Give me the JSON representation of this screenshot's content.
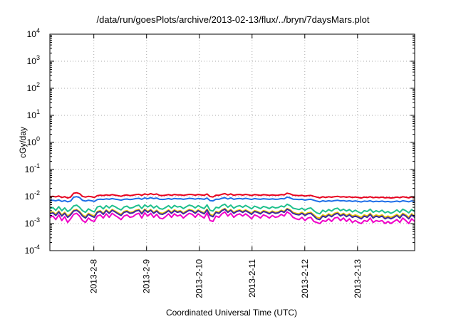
{
  "chart_data": {
    "type": "line",
    "title": "/data/run/goesPlots/archive/2013-02-13/flux/../bryn/7daysMars.plot",
    "xlabel": "Coordinated Universal Time (UTC)",
    "ylabel": "cGy/day",
    "yscale": "log",
    "ylim": [
      0.0001,
      10000
    ],
    "xlim": [
      "2013-02-07T04:00",
      "2013-02-14T02:00"
    ],
    "grid": true,
    "legend": "none",
    "y_ticks": [
      {
        "base": "10",
        "exp": "-4"
      },
      {
        "base": "10",
        "exp": "-3"
      },
      {
        "base": "10",
        "exp": "-2"
      },
      {
        "base": "10",
        "exp": "-1"
      },
      {
        "base": "10",
        "exp": "0"
      },
      {
        "base": "10",
        "exp": "1"
      },
      {
        "base": "10",
        "exp": "2"
      },
      {
        "base": "10",
        "exp": "3"
      },
      {
        "base": "10",
        "exp": "4"
      }
    ],
    "x_ticks": [
      {
        "label": "2013-2-8",
        "date": "2013-02-08T00:00"
      },
      {
        "label": "2013-2-9",
        "date": "2013-02-09T00:00"
      },
      {
        "label": "2013-2-10",
        "date": "2013-02-10T00:00"
      },
      {
        "label": "2013-2-11",
        "date": "2013-02-11T00:00"
      },
      {
        "label": "2013-2-12",
        "date": "2013-02-12T00:00"
      },
      {
        "label": "2013-2-13",
        "date": "2013-02-13T00:00"
      }
    ],
    "series": [
      {
        "color": "#e8001e",
        "start": "2013-02-07T04:00",
        "end": "2013-02-14T02:00",
        "values": [
          0.0098,
          0.0102,
          0.0097,
          0.0105,
          0.0092,
          0.0099,
          0.0088,
          0.0095,
          0.0132,
          0.0138,
          0.0128,
          0.0101,
          0.0095,
          0.0102,
          0.0098,
          0.0092,
          0.0108,
          0.0112,
          0.0109,
          0.0115,
          0.011,
          0.0118,
          0.0112,
          0.0108,
          0.0102,
          0.0111,
          0.0114,
          0.0108,
          0.0112,
          0.0118,
          0.0121,
          0.0111,
          0.0125,
          0.0116,
          0.0128,
          0.0118,
          0.0124,
          0.011,
          0.0109,
          0.0112,
          0.0118,
          0.011,
          0.0119,
          0.0115,
          0.0116,
          0.011,
          0.0115,
          0.012,
          0.0118,
          0.0112,
          0.0119,
          0.0115,
          0.0111,
          0.0124,
          0.01,
          0.0096,
          0.0112,
          0.0111,
          0.0121,
          0.0128,
          0.0114,
          0.0125,
          0.0111,
          0.0117,
          0.0119,
          0.0113,
          0.012,
          0.0115,
          0.0109,
          0.0118,
          0.0114,
          0.011,
          0.0117,
          0.0114,
          0.011,
          0.0115,
          0.0111,
          0.0112,
          0.0118,
          0.0115,
          0.0133,
          0.0125,
          0.0112,
          0.011,
          0.0108,
          0.0111,
          0.0104,
          0.0108,
          0.011,
          0.0102,
          0.0095,
          0.0089,
          0.0098,
          0.0092,
          0.0098,
          0.0094,
          0.0099,
          0.0102,
          0.0096,
          0.0099,
          0.0094,
          0.0098,
          0.0092,
          0.0096,
          0.0092,
          0.0088,
          0.0095,
          0.0092,
          0.0098,
          0.009,
          0.0094,
          0.0091,
          0.0095,
          0.0089,
          0.0092,
          0.0088,
          0.0091,
          0.0095,
          0.009,
          0.0098,
          0.0094,
          0.0089,
          0.0097,
          0.0092
        ]
      },
      {
        "color": "#1e6ee8",
        "start": "2013-02-07T04:00",
        "end": "2013-02-14T02:00",
        "values": [
          0.0071,
          0.0073,
          0.0069,
          0.0075,
          0.0066,
          0.0071,
          0.0064,
          0.0068,
          0.0094,
          0.0099,
          0.0092,
          0.0072,
          0.0068,
          0.0073,
          0.007,
          0.0066,
          0.0077,
          0.008,
          0.0078,
          0.0082,
          0.0079,
          0.0084,
          0.008,
          0.0077,
          0.0073,
          0.0079,
          0.0081,
          0.0077,
          0.008,
          0.0084,
          0.0086,
          0.0079,
          0.0089,
          0.0083,
          0.0091,
          0.0084,
          0.0088,
          0.0079,
          0.0078,
          0.008,
          0.0084,
          0.0079,
          0.0085,
          0.0082,
          0.0083,
          0.0079,
          0.0082,
          0.0086,
          0.0084,
          0.008,
          0.0085,
          0.0082,
          0.0079,
          0.0088,
          0.0071,
          0.0069,
          0.008,
          0.0079,
          0.0086,
          0.0091,
          0.0081,
          0.0089,
          0.0079,
          0.0083,
          0.0085,
          0.0081,
          0.0086,
          0.0082,
          0.0078,
          0.0084,
          0.0081,
          0.0079,
          0.0083,
          0.0081,
          0.0079,
          0.0082,
          0.0079,
          0.008,
          0.0084,
          0.0082,
          0.0095,
          0.0089,
          0.008,
          0.0079,
          0.0077,
          0.0079,
          0.0074,
          0.0077,
          0.0079,
          0.0073,
          0.0068,
          0.0064,
          0.007,
          0.0066,
          0.007,
          0.0067,
          0.0071,
          0.0073,
          0.0069,
          0.0071,
          0.0067,
          0.007,
          0.0066,
          0.0069,
          0.0066,
          0.0063,
          0.0068,
          0.0066,
          0.007,
          0.0064,
          0.0067,
          0.0065,
          0.0068,
          0.0064,
          0.0066,
          0.0063,
          0.0065,
          0.0068,
          0.0064,
          0.007,
          0.0067,
          0.0064,
          0.0069,
          0.0066
        ]
      },
      {
        "color": "#1ec08c",
        "start": "2013-02-07T04:00",
        "end": "2013-02-14T02:00",
        "values": [
          0.0036,
          0.0039,
          0.0031,
          0.0042,
          0.003,
          0.0038,
          0.0028,
          0.0033,
          0.0045,
          0.0048,
          0.004,
          0.003,
          0.0026,
          0.0035,
          0.003,
          0.0027,
          0.0041,
          0.0044,
          0.0035,
          0.0046,
          0.0038,
          0.0047,
          0.0042,
          0.0036,
          0.0032,
          0.0041,
          0.0044,
          0.0037,
          0.0039,
          0.0045,
          0.0048,
          0.0036,
          0.0049,
          0.0041,
          0.0048,
          0.0038,
          0.0045,
          0.0036,
          0.0034,
          0.0039,
          0.0046,
          0.0037,
          0.0047,
          0.0041,
          0.0043,
          0.0036,
          0.0042,
          0.0048,
          0.0045,
          0.0038,
          0.0046,
          0.004,
          0.0036,
          0.0049,
          0.0031,
          0.0029,
          0.004,
          0.0038,
          0.0047,
          0.0052,
          0.004,
          0.0048,
          0.0037,
          0.0043,
          0.0046,
          0.004,
          0.0047,
          0.0041,
          0.0035,
          0.0044,
          0.004,
          0.0036,
          0.0043,
          0.004,
          0.0036,
          0.0042,
          0.0038,
          0.0039,
          0.0045,
          0.0041,
          0.0052,
          0.0046,
          0.0037,
          0.0035,
          0.0033,
          0.0037,
          0.0031,
          0.0036,
          0.0038,
          0.003,
          0.0025,
          0.0023,
          0.0031,
          0.0027,
          0.0033,
          0.0029,
          0.0035,
          0.0037,
          0.003,
          0.0034,
          0.0029,
          0.0033,
          0.0027,
          0.0031,
          0.0027,
          0.0024,
          0.003,
          0.0028,
          0.0034,
          0.0026,
          0.003,
          0.0027,
          0.0031,
          0.0025,
          0.0028,
          0.0024,
          0.0027,
          0.0032,
          0.0026,
          0.0034,
          0.003,
          0.0025,
          0.0033,
          0.0028
        ]
      },
      {
        "color": "#e8c800",
        "start": "2013-02-07T04:00",
        "end": "2013-02-14T02:00",
        "values": [
          0.0025,
          0.0027,
          0.0022,
          0.0029,
          0.0021,
          0.0026,
          0.0019,
          0.0023,
          0.0031,
          0.0033,
          0.0028,
          0.0021,
          0.0018,
          0.0024,
          0.0021,
          0.0019,
          0.0028,
          0.003,
          0.0024,
          0.0032,
          0.0026,
          0.0033,
          0.0029,
          0.0025,
          0.0022,
          0.0028,
          0.003,
          0.0026,
          0.0027,
          0.0031,
          0.0033,
          0.0025,
          0.0034,
          0.0028,
          0.0033,
          0.0026,
          0.0031,
          0.0025,
          0.0024,
          0.0027,
          0.0032,
          0.0026,
          0.0032,
          0.0028,
          0.003,
          0.0025,
          0.0029,
          0.0033,
          0.0031,
          0.0026,
          0.0032,
          0.0028,
          0.0025,
          0.0034,
          0.0022,
          0.002,
          0.0028,
          0.0026,
          0.0032,
          0.0036,
          0.0028,
          0.0033,
          0.0026,
          0.003,
          0.0032,
          0.0028,
          0.0032,
          0.0028,
          0.0024,
          0.003,
          0.0028,
          0.0025,
          0.003,
          0.0028,
          0.0025,
          0.0029,
          0.0026,
          0.0027,
          0.0031,
          0.0028,
          0.0036,
          0.0032,
          0.0026,
          0.0024,
          0.0023,
          0.0026,
          0.0022,
          0.0025,
          0.0026,
          0.0021,
          0.0017,
          0.0016,
          0.0021,
          0.0019,
          0.0023,
          0.002,
          0.0024,
          0.0026,
          0.0021,
          0.0024,
          0.002,
          0.0023,
          0.0019,
          0.0021,
          0.0019,
          0.0017,
          0.0021,
          0.0019,
          0.0024,
          0.0018,
          0.0021,
          0.0019,
          0.0021,
          0.0017,
          0.0019,
          0.0017,
          0.0019,
          0.0022,
          0.0018,
          0.0024,
          0.0021,
          0.0017,
          0.0023,
          0.0019
        ]
      },
      {
        "color": "#3c28a0",
        "start": "2013-02-07T04:00",
        "end": "2013-02-14T02:00",
        "values": [
          0.0023,
          0.0025,
          0.002,
          0.0027,
          0.0019,
          0.0024,
          0.0017,
          0.0021,
          0.0029,
          0.0031,
          0.0026,
          0.0019,
          0.0016,
          0.0022,
          0.0019,
          0.0017,
          0.0026,
          0.0028,
          0.0022,
          0.003,
          0.0024,
          0.0031,
          0.0027,
          0.0023,
          0.002,
          0.0026,
          0.0028,
          0.0024,
          0.0025,
          0.0029,
          0.0031,
          0.0023,
          0.0032,
          0.0026,
          0.0031,
          0.0024,
          0.0029,
          0.0023,
          0.0022,
          0.0025,
          0.003,
          0.0024,
          0.003,
          0.0026,
          0.0028,
          0.0023,
          0.0027,
          0.0031,
          0.0029,
          0.0024,
          0.003,
          0.0026,
          0.0023,
          0.0032,
          0.002,
          0.0018,
          0.0026,
          0.0024,
          0.003,
          0.0034,
          0.0026,
          0.0031,
          0.0024,
          0.0028,
          0.003,
          0.0026,
          0.003,
          0.0026,
          0.0022,
          0.0028,
          0.0026,
          0.0023,
          0.0028,
          0.0026,
          0.0023,
          0.0027,
          0.0024,
          0.0025,
          0.0029,
          0.0026,
          0.0034,
          0.003,
          0.0024,
          0.0022,
          0.0021,
          0.0024,
          0.002,
          0.0023,
          0.0024,
          0.0019,
          0.0015,
          0.0014,
          0.0019,
          0.0017,
          0.0021,
          0.0018,
          0.0022,
          0.0024,
          0.0019,
          0.0022,
          0.0018,
          0.0021,
          0.0017,
          0.0019,
          0.0017,
          0.0015,
          0.0019,
          0.0017,
          0.0022,
          0.0016,
          0.0019,
          0.0017,
          0.0019,
          0.0015,
          0.0017,
          0.0015,
          0.0017,
          0.002,
          0.0016,
          0.0022,
          0.0019,
          0.0015,
          0.0021,
          0.0017
        ]
      },
      {
        "color": "#f000c8",
        "start": "2013-02-07T04:00",
        "end": "2013-02-14T02:00",
        "values": [
          0.0017,
          0.0019,
          0.0014,
          0.0021,
          0.0013,
          0.0018,
          0.0011,
          0.0015,
          0.0022,
          0.0024,
          0.0019,
          0.0013,
          0.0011,
          0.0016,
          0.0013,
          0.0012,
          0.0019,
          0.0021,
          0.0016,
          0.0023,
          0.0017,
          0.0024,
          0.002,
          0.0017,
          0.0014,
          0.0019,
          0.0021,
          0.0017,
          0.0018,
          0.0022,
          0.0024,
          0.0016,
          0.0025,
          0.0019,
          0.0024,
          0.0017,
          0.0022,
          0.0016,
          0.0015,
          0.0018,
          0.0023,
          0.0017,
          0.0023,
          0.0019,
          0.0021,
          0.0016,
          0.002,
          0.0024,
          0.0022,
          0.0017,
          0.0023,
          0.0019,
          0.0016,
          0.0025,
          0.0013,
          0.0012,
          0.0019,
          0.0017,
          0.0023,
          0.0027,
          0.0019,
          0.0024,
          0.0017,
          0.0021,
          0.0023,
          0.0019,
          0.0023,
          0.0019,
          0.0015,
          0.0021,
          0.0019,
          0.0016,
          0.0021,
          0.0019,
          0.0016,
          0.002,
          0.0017,
          0.0018,
          0.0022,
          0.0019,
          0.0027,
          0.0023,
          0.0017,
          0.0015,
          0.0014,
          0.0017,
          0.0013,
          0.0016,
          0.0017,
          0.0012,
          0.0011,
          0.001,
          0.0013,
          0.0012,
          0.0015,
          0.0012,
          0.0016,
          0.0017,
          0.0013,
          0.0016,
          0.0012,
          0.0015,
          0.0011,
          0.0013,
          0.0011,
          0.001,
          0.0013,
          0.0012,
          0.0016,
          0.0011,
          0.0013,
          0.0012,
          0.0013,
          0.001,
          0.0012,
          0.001,
          0.0012,
          0.0014,
          0.0011,
          0.0016,
          0.0013,
          0.001,
          0.0015,
          0.0012
        ]
      }
    ]
  }
}
